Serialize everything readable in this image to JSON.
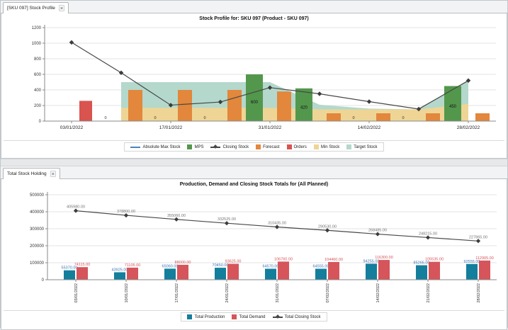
{
  "top_pane": {
    "tab_label": "[SKU 097] Stock Profile",
    "close_label": "×"
  },
  "bottom_pane": {
    "tab_label": "Total Stock Holding",
    "close_label": "×"
  },
  "colors": {
    "production_teal": "#147e9d",
    "demand_red": "#d5555b",
    "forecast_orange": "#e2873b",
    "orders_red": "#d9534f",
    "mps_green": "#53974d",
    "min_stock_tan": "#eed595",
    "target_stock_teal": "#b4d8cc",
    "closing_line": "#474747",
    "abs_max_blue": "#4f81bd"
  },
  "chart_data": [
    {
      "type": "combo",
      "title": "Stock Profile for:  SKU 097 (Product - SKU 097)",
      "x": [
        "03/01/2022",
        "10/01/2022",
        "17/01/2022",
        "24/01/2022",
        "31/01/2022",
        "07/02/2022",
        "14/02/2022",
        "21/02/2022",
        "28/02/2022"
      ],
      "x_axis_ticks": [
        "03/01/2022",
        "17/01/2022",
        "31/01/2022",
        "14/02/2022",
        "28/02/2022"
      ],
      "ylim": [
        0,
        1200
      ],
      "y_tick_step": 200,
      "grid": true,
      "legend_position": "bottom",
      "zero_label_weeks": [
        1,
        2,
        3,
        6,
        7
      ],
      "series": [
        {
          "name": "Absolute Max Stock",
          "kind": "line",
          "color": "#4f81bd",
          "values": []
        },
        {
          "name": "MPS",
          "kind": "bar",
          "color": "#53974d",
          "values": [
            0,
            0,
            0,
            0,
            600,
            420,
            0,
            0,
            450
          ]
        },
        {
          "name": "Closing Stock",
          "kind": "line-marker",
          "color": "#474747",
          "values": [
            1010,
            620,
            205,
            245,
            430,
            350,
            250,
            155,
            520
          ]
        },
        {
          "name": "Forecast",
          "kind": "bar",
          "color": "#e2873b",
          "values": [
            0,
            400,
            400,
            400,
            380,
            100,
            100,
            100,
            100
          ]
        },
        {
          "name": "Orders",
          "kind": "bar",
          "color": "#d9534f",
          "values": [
            260,
            0,
            0,
            0,
            0,
            0,
            0,
            0,
            0
          ]
        },
        {
          "name": "Min Stock",
          "kind": "area",
          "color": "#eed595",
          "values": [
            null,
            170,
            170,
            170,
            170,
            150,
            150,
            150,
            220
          ]
        },
        {
          "name": "Target Stock",
          "kind": "area",
          "color": "#b4d8cc",
          "values": [
            null,
            500,
            500,
            500,
            500,
            210,
            160,
            150,
            515
          ]
        }
      ]
    },
    {
      "type": "combo",
      "title": "Production, Demand and Closing Stock Totals for (All Planned)",
      "x": [
        "03/01/2022",
        "10/01/2022",
        "17/01/2022",
        "24/01/2022",
        "31/01/2022",
        "07/02/2022",
        "14/02/2022",
        "21/02/2022",
        "28/02/2022"
      ],
      "ylim": [
        0,
        500000
      ],
      "y_tick_step": 100000,
      "grid": true,
      "legend_position": "bottom",
      "value_label_decimals": 2,
      "series": [
        {
          "name": "Total Production",
          "kind": "bar",
          "color": "#147e9d",
          "label_color": "#3f76b5",
          "values": [
            55370,
            43925,
            65060,
            70450,
            64570,
            64555,
            94255,
            85265,
            92555
          ]
        },
        {
          "name": "Total Demand",
          "kind": "bar",
          "color": "#d5555b",
          "label_color": "#d5555b",
          "values": [
            74115,
            71105,
            88000,
            93625,
            106760,
            104460,
            116300,
            105535,
            112905
          ]
        },
        {
          "name": "Total Closing Stock",
          "kind": "line-marker",
          "color": "#474747",
          "label_color": "#737373",
          "values": [
            405980,
            378800,
            355060,
            332525,
            310435,
            290530,
            268485,
            248215,
            227865
          ]
        }
      ]
    }
  ]
}
